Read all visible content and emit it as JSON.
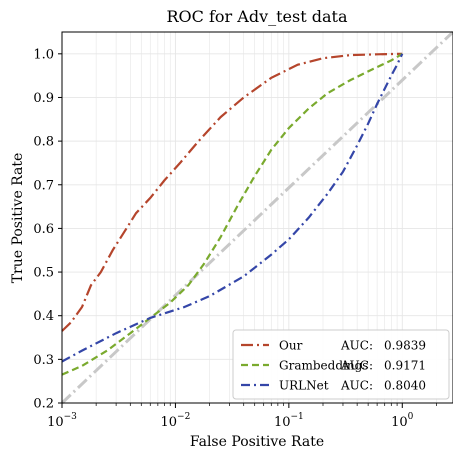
{
  "chart_data": {
    "type": "line",
    "title": "ROC for Adv_test data",
    "xlabel": "False Positive Rate",
    "ylabel": "True Positive Rate",
    "xscale": "log",
    "xlim": [
      0.001,
      2.8
    ],
    "ylim": [
      0.2,
      1.05
    ],
    "x_ticks": [
      {
        "value": 0.001,
        "base": "10",
        "exp": "−3"
      },
      {
        "value": 0.01,
        "base": "10",
        "exp": "−2"
      },
      {
        "value": 0.1,
        "base": "10",
        "exp": "−1"
      },
      {
        "value": 1,
        "base": "10",
        "exp": "0"
      }
    ],
    "y_ticks": [
      "0.2",
      "0.3",
      "0.4",
      "0.5",
      "0.6",
      "0.7",
      "0.8",
      "0.9",
      "1.0"
    ],
    "grid": true,
    "legend_position": "bottom-right",
    "series": [
      {
        "name": "Our",
        "auc_label": "AUC:",
        "auc_value": "0.9839",
        "color": "#b5452c",
        "dash": "long-dash-dot",
        "points": [
          [
            0.001,
            0.365
          ],
          [
            0.0012,
            0.385
          ],
          [
            0.0015,
            0.42
          ],
          [
            0.0018,
            0.47
          ],
          [
            0.0022,
            0.5
          ],
          [
            0.0028,
            0.55
          ],
          [
            0.0035,
            0.59
          ],
          [
            0.0045,
            0.635
          ],
          [
            0.006,
            0.67
          ],
          [
            0.008,
            0.71
          ],
          [
            0.011,
            0.75
          ],
          [
            0.016,
            0.8
          ],
          [
            0.025,
            0.855
          ],
          [
            0.04,
            0.9
          ],
          [
            0.07,
            0.945
          ],
          [
            0.12,
            0.975
          ],
          [
            0.2,
            0.99
          ],
          [
            0.35,
            0.997
          ],
          [
            0.6,
            0.999
          ],
          [
            1.0,
            1.0
          ]
        ]
      },
      {
        "name": "Grambeddings",
        "auc_label": "AUC:",
        "auc_value": "0.9171",
        "color": "#7aaa2e",
        "dash": "dashed",
        "points": [
          [
            0.001,
            0.265
          ],
          [
            0.0015,
            0.285
          ],
          [
            0.0025,
            0.32
          ],
          [
            0.004,
            0.36
          ],
          [
            0.006,
            0.395
          ],
          [
            0.009,
            0.43
          ],
          [
            0.013,
            0.47
          ],
          [
            0.018,
            0.52
          ],
          [
            0.025,
            0.58
          ],
          [
            0.035,
            0.65
          ],
          [
            0.05,
            0.72
          ],
          [
            0.07,
            0.78
          ],
          [
            0.1,
            0.83
          ],
          [
            0.15,
            0.875
          ],
          [
            0.22,
            0.91
          ],
          [
            0.35,
            0.94
          ],
          [
            0.55,
            0.965
          ],
          [
            0.8,
            0.985
          ],
          [
            1.0,
            1.0
          ]
        ]
      },
      {
        "name": "URLNet",
        "auc_label": "AUC:",
        "auc_value": "0.8040",
        "color": "#3446a8",
        "dash": "dash-dot",
        "points": [
          [
            0.001,
            0.295
          ],
          [
            0.0015,
            0.32
          ],
          [
            0.003,
            0.36
          ],
          [
            0.006,
            0.395
          ],
          [
            0.012,
            0.42
          ],
          [
            0.02,
            0.445
          ],
          [
            0.04,
            0.49
          ],
          [
            0.07,
            0.54
          ],
          [
            0.1,
            0.575
          ],
          [
            0.15,
            0.625
          ],
          [
            0.22,
            0.68
          ],
          [
            0.3,
            0.73
          ],
          [
            0.4,
            0.79
          ],
          [
            0.5,
            0.84
          ],
          [
            0.6,
            0.885
          ],
          [
            0.7,
            0.92
          ],
          [
            0.8,
            0.95
          ],
          [
            0.9,
            0.975
          ],
          [
            1.0,
            1.0
          ]
        ]
      }
    ],
    "reference_line": {
      "color": "#c8c8c8",
      "dash": "long-dash-dot",
      "points": [
        [
          0.001,
          0.2
        ],
        [
          2.8,
          1.05
        ]
      ]
    }
  }
}
